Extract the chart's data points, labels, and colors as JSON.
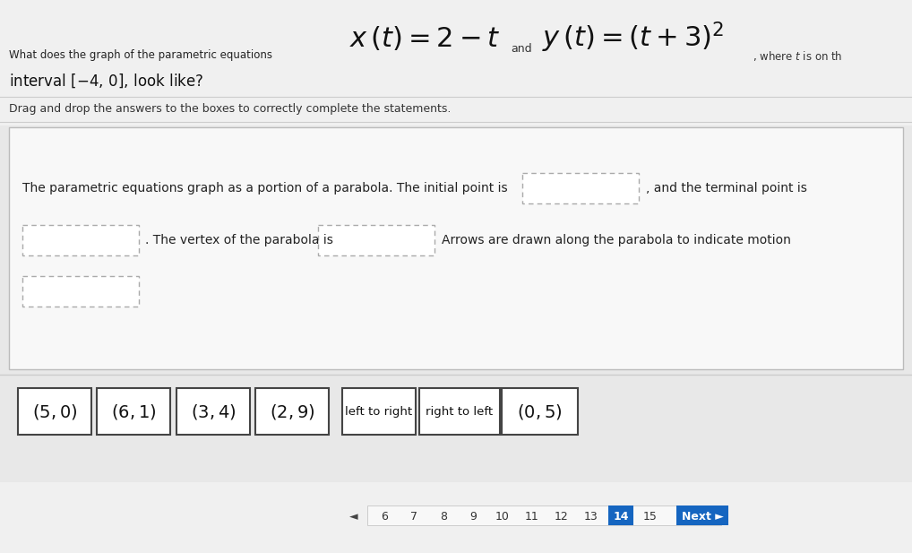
{
  "bg_color": "#e8e8e8",
  "card_bg": "#f5f5f5",
  "card_border": "#cccccc",
  "drag_bg": "#e0e0e0",
  "box_dashed_color": "#999999",
  "box_solid_color": "#555555",
  "title_small": "What does the graph of the parametric equations",
  "eq_x": "$x\\,(t) = 2 - t$",
  "eq_and": "and",
  "eq_y": "$y\\,(t) = (t + 3)^{2}$",
  "eq_where": ", where $t$ is on th",
  "interval_text": "interval $\\left[-4,\\,0\\right]$, look like?",
  "drag_text": "Drag and drop the answers to the boxes to correctly complete the statements.",
  "s1": "The parametric equations graph as a portion of a parabola. The initial point is",
  "s2": ", and the terminal point is",
  "s3": ". The vertex of the parabola is",
  "s4": "Arrows are drawn along the parabola to indicate motion",
  "drag_items": [
    "$(5,0)$",
    "$(6,1)$",
    "$(3,4)$",
    "$(2,9)$",
    "left to right",
    "right to left",
    "$(0,5)$"
  ],
  "drag_item_labels": [
    "(5,0)",
    "(6,1)",
    "(3,4)",
    "(2,9)",
    "left to right",
    "right to left",
    "(0,5)"
  ],
  "page_numbers": [
    "6",
    "7",
    "8",
    "9",
    "10",
    "11",
    "12",
    "13",
    "14",
    "15"
  ],
  "current_page": "14",
  "next_bg": "#1565c0",
  "next_fg": "#ffffff"
}
